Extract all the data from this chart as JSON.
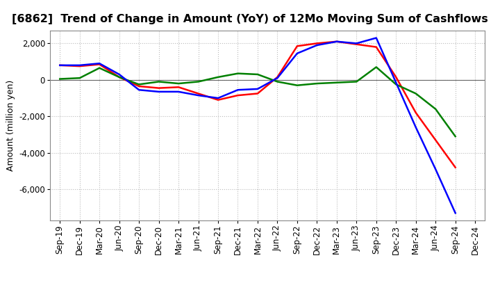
{
  "title": "[6862]  Trend of Change in Amount (YoY) of 12Mo Moving Sum of Cashflows",
  "ylabel": "Amount (million yen)",
  "categories": [
    "Sep-19",
    "Dec-19",
    "Mar-20",
    "Jun-20",
    "Sep-20",
    "Dec-20",
    "Mar-21",
    "Jun-21",
    "Sep-21",
    "Dec-21",
    "Mar-22",
    "Jun-22",
    "Sep-22",
    "Dec-22",
    "Mar-23",
    "Jun-23",
    "Sep-23",
    "Dec-23",
    "Mar-24",
    "Jun-24",
    "Sep-24",
    "Dec-24"
  ],
  "operating_cashflow": [
    800,
    750,
    850,
    150,
    -350,
    -450,
    -400,
    -750,
    -1100,
    -850,
    -750,
    150,
    1850,
    2000,
    2100,
    1950,
    1800,
    150,
    -1800,
    -3300,
    -4800,
    null
  ],
  "investing_cashflow": [
    50,
    100,
    650,
    150,
    -250,
    -100,
    -200,
    -100,
    150,
    350,
    300,
    -100,
    -300,
    -200,
    -150,
    -100,
    700,
    -250,
    -750,
    -1600,
    -3100,
    null
  ],
  "free_cashflow": [
    800,
    800,
    900,
    300,
    -550,
    -650,
    -650,
    -850,
    -1000,
    -550,
    -500,
    100,
    1450,
    1900,
    2100,
    2000,
    2300,
    -150,
    -2600,
    -4900,
    -7300,
    null
  ],
  "operating_color": "#ff0000",
  "investing_color": "#008000",
  "free_color": "#0000ff",
  "ylim": [
    -7700,
    2700
  ],
  "yticks": [
    2000,
    0,
    -2000,
    -4000,
    -6000
  ],
  "background_color": "#ffffff",
  "grid_color": "#bbbbbb",
  "title_fontsize": 11.5,
  "axis_fontsize": 8.5,
  "ylabel_fontsize": 9,
  "legend_fontsize": 9.5,
  "linewidth": 1.8
}
